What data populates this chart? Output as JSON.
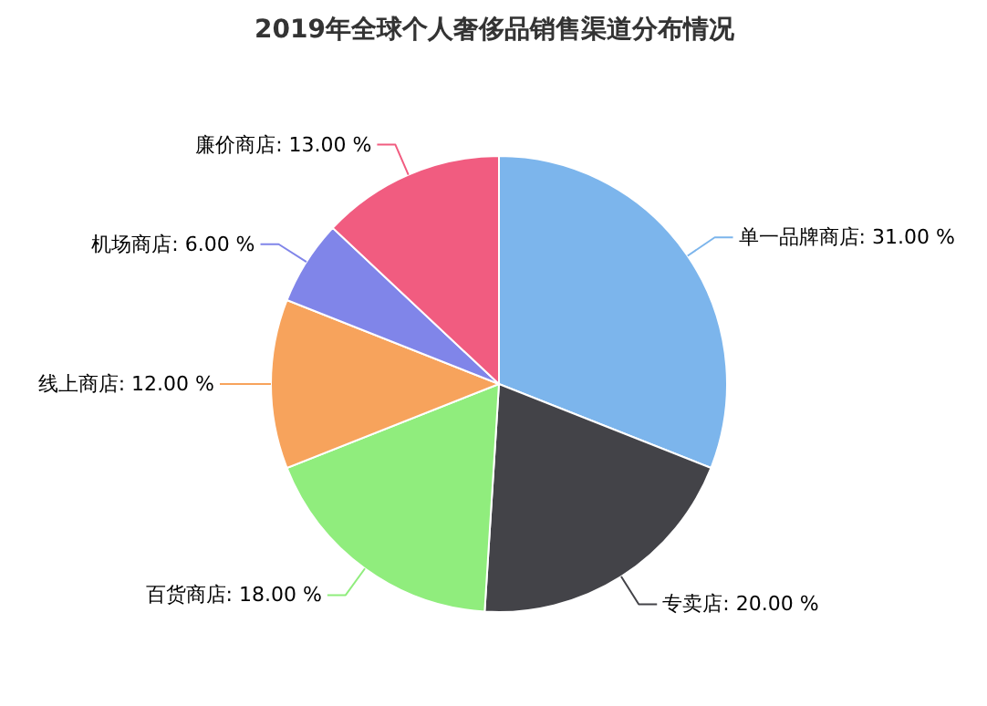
{
  "chart_data": {
    "type": "pie",
    "title": "2019年全球个人奢侈品销售渠道分布情况",
    "categories": [
      "单一品牌商店",
      "专卖店",
      "百货商店",
      "线上商店",
      "机场商店",
      "廉价商店"
    ],
    "values": [
      31,
      20,
      18,
      12,
      6,
      13
    ],
    "value_labels": [
      "31.00 %",
      "20.00 %",
      "18.00 %",
      "12.00 %",
      "6.00 %",
      "13.00 %"
    ],
    "colors": [
      "#7cb5ec",
      "#434348",
      "#90ed7d",
      "#f7a35c",
      "#8085e9",
      "#f15c80"
    ]
  }
}
